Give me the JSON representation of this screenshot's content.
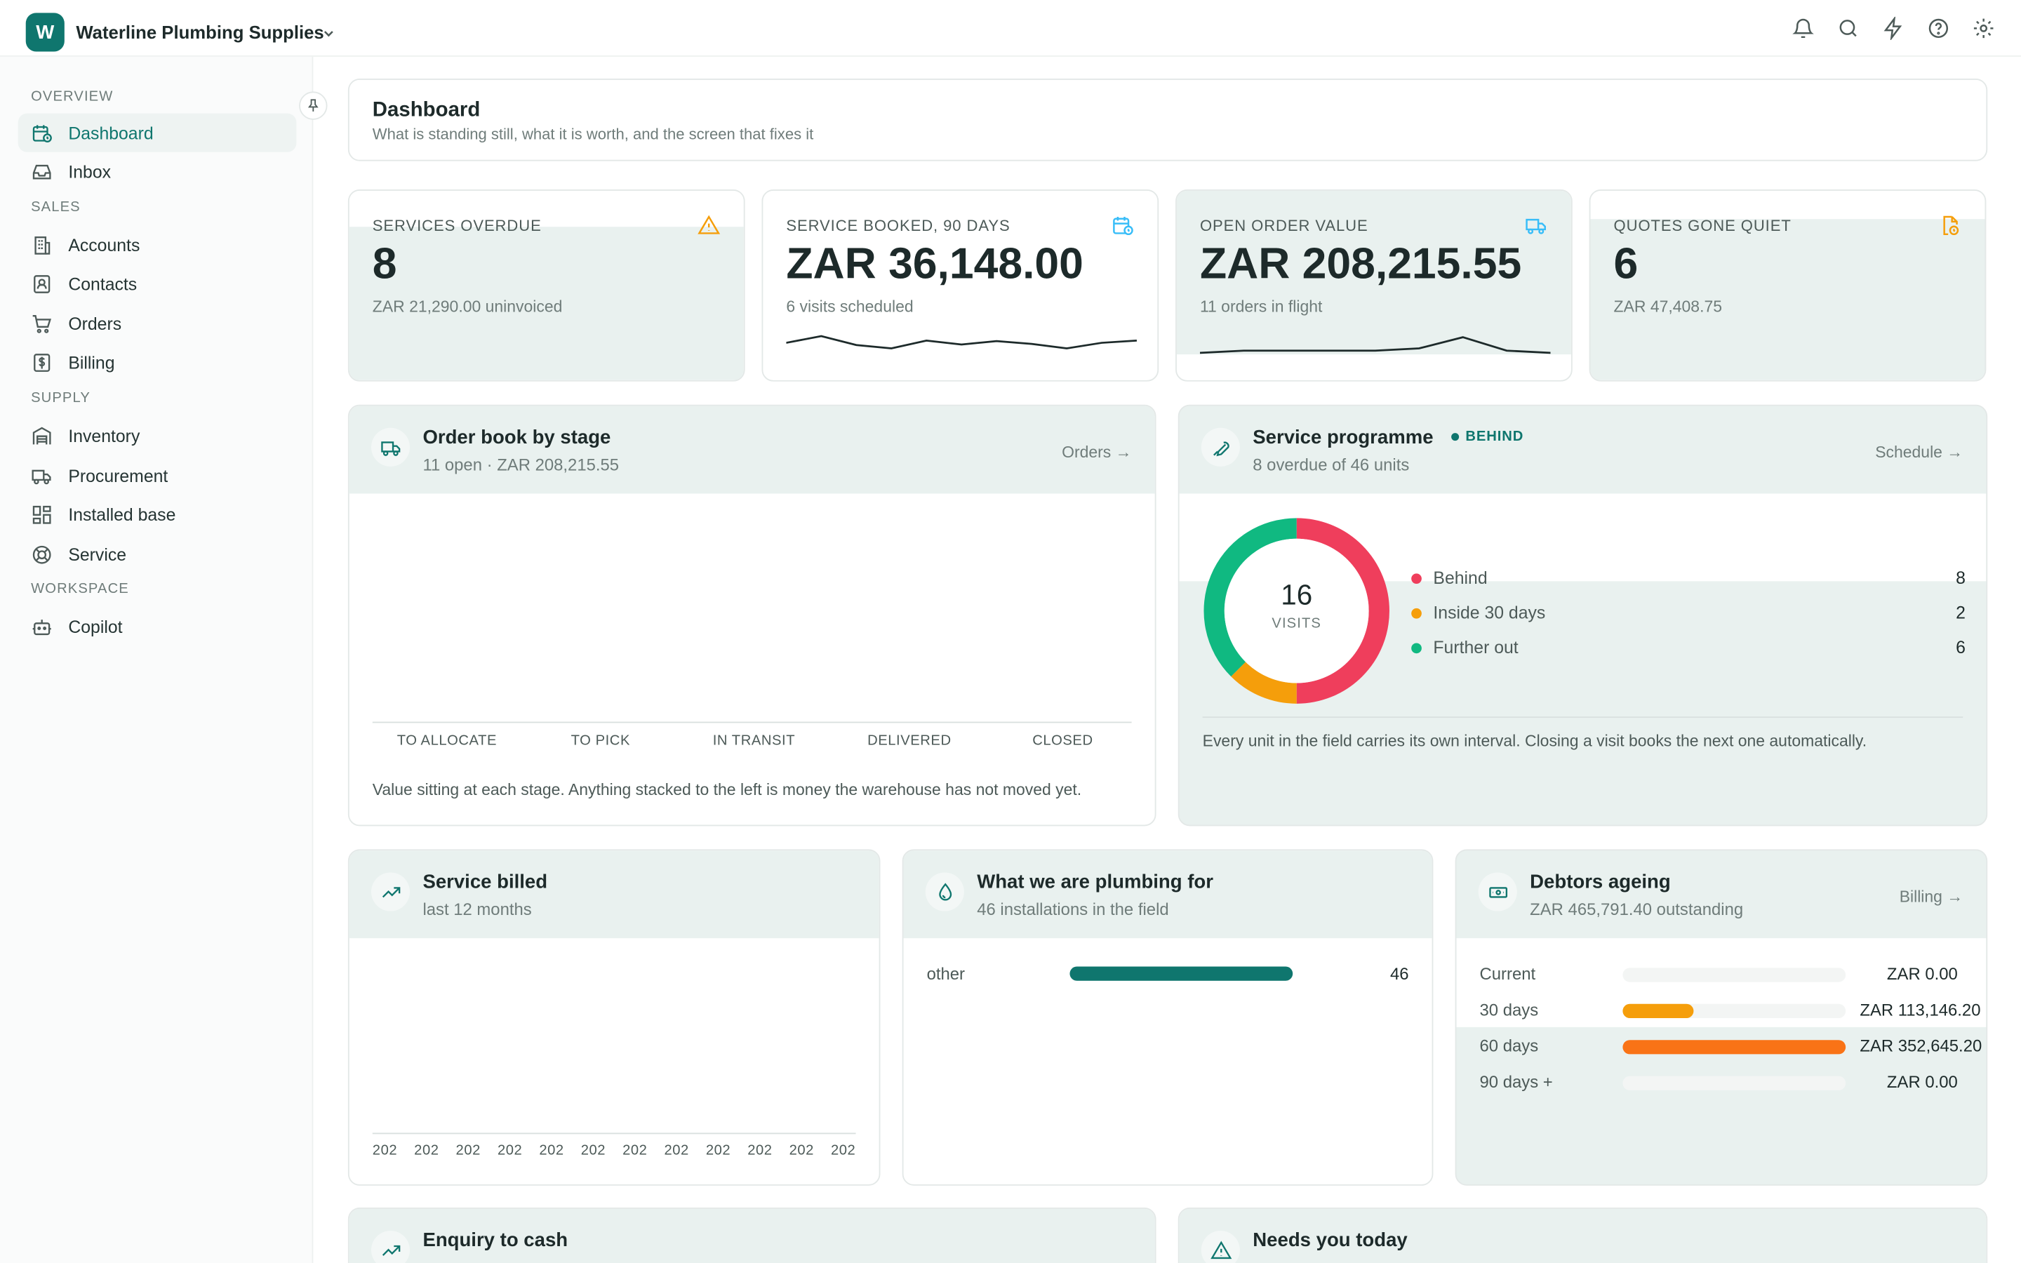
{
  "org": {
    "initial": "W",
    "name": "Waterline Plumbing Supplies"
  },
  "topbar_icons": [
    "bell-icon",
    "search-icon",
    "lightning-icon",
    "help-icon",
    "gear-icon"
  ],
  "sidebar": {
    "sections": [
      "OVERVIEW",
      "SALES",
      "SUPPLY",
      "WORKSPACE"
    ],
    "items": [
      {
        "label": "Dashboard",
        "icon": "calendar-clock-icon",
        "active": true
      },
      {
        "label": "Inbox",
        "icon": "inbox-icon"
      },
      {
        "label": "Accounts",
        "icon": "building-icon"
      },
      {
        "label": "Contacts",
        "icon": "contact-icon"
      },
      {
        "label": "Orders",
        "icon": "cart-icon"
      },
      {
        "label": "Billing",
        "icon": "dollar-icon"
      },
      {
        "label": "Inventory",
        "icon": "warehouse-icon"
      },
      {
        "label": "Procurement",
        "icon": "truck-icon"
      },
      {
        "label": "Installed base",
        "icon": "grid-icon"
      },
      {
        "label": "Service",
        "icon": "lifebuoy-icon"
      },
      {
        "label": "Copilot",
        "icon": "bot-icon"
      }
    ]
  },
  "page": {
    "title": "Dashboard",
    "subtitle": "What is standing still, what it is worth, and the screen that fixes it"
  },
  "kpis": [
    {
      "label": "SERVICES OVERDUE",
      "value": "8",
      "sub": "ZAR 21,290.00 uninvoiced",
      "icon": "warning-icon",
      "color": "#f59e0b"
    },
    {
      "label": "SERVICE BOOKED, 90 DAYS",
      "value": "ZAR 36,148.00",
      "sub": "6 visits scheduled",
      "icon": "calendar-clock-icon",
      "color": "#38bdf8"
    },
    {
      "label": "OPEN ORDER VALUE",
      "value": "ZAR 208,215.55",
      "sub": "11 orders in flight",
      "icon": "truck-icon",
      "color": "#38bdf8"
    },
    {
      "label": "QUOTES GONE QUIET",
      "value": "6",
      "sub": "ZAR 47,408.75",
      "icon": "file-clock-icon",
      "color": "#f59e0b"
    }
  ],
  "order_book": {
    "title": "Order book by stage",
    "sub": "11 open · ZAR 208,215.55",
    "link": "Orders →",
    "stages": [
      "TO ALLOCATE",
      "TO PICK",
      "IN TRANSIT",
      "DELIVERED",
      "CLOSED"
    ],
    "note": "Value sitting at each stage. Anything stacked to the left is money the warehouse has not moved yet."
  },
  "service_prog": {
    "title": "Service programme",
    "badge": "BEHIND",
    "sub": "8 overdue of 46 units",
    "link": "Schedule →",
    "center_value": "16",
    "center_label": "VISITS",
    "legend": [
      {
        "label": "Behind",
        "value": "8",
        "color": "#ef3e5c"
      },
      {
        "label": "Inside 30 days",
        "value": "2",
        "color": "#f59e0b"
      },
      {
        "label": "Further out",
        "value": "6",
        "color": "#10b981"
      }
    ],
    "note": "Every unit in the field carries its own interval. Closing a visit books the next one automatically."
  },
  "service_billed": {
    "title": "Service billed",
    "sub": "last 12 months",
    "ticks": [
      "202",
      "202",
      "202",
      "202",
      "202",
      "202",
      "202",
      "202",
      "202",
      "202",
      "202",
      "202"
    ]
  },
  "plumbing": {
    "title": "What we are plumbing for",
    "sub": "46 installations in the field",
    "rows": [
      {
        "label": "other",
        "value": "46",
        "fill": 1.0
      }
    ]
  },
  "debtors": {
    "title": "Debtors ageing",
    "sub": "ZAR 465,791.40 outstanding",
    "link": "Billing →",
    "rows": [
      {
        "label": "Current",
        "value": "ZAR 0.00",
        "fill": 0
      },
      {
        "label": "30 days",
        "value": "ZAR 113,146.20",
        "fill": 0.32
      },
      {
        "label": "60 days",
        "value": "ZAR 352,645.20",
        "fill": 1.0
      },
      {
        "label": "90 days +",
        "value": "ZAR 0.00",
        "fill": 0
      }
    ]
  },
  "enquiry": {
    "title": "Enquiry to cash"
  },
  "needs": {
    "title": "Needs you today"
  },
  "chart_data": [
    {
      "type": "line",
      "title": "SERVICE BOOKED, 90 DAYS",
      "values": [
        3,
        4.2,
        2.6,
        2,
        3.4,
        2.7,
        3.3,
        2.8,
        2,
        3,
        3.4
      ],
      "ylim": [
        0,
        6
      ]
    },
    {
      "type": "line",
      "title": "OPEN ORDER VALUE",
      "values": [
        1.2,
        1.6,
        1.6,
        1.6,
        1.6,
        2,
        4,
        1.6,
        1.2
      ],
      "ylim": [
        0,
        6
      ]
    },
    {
      "type": "pie",
      "title": "Service programme",
      "categories": [
        "Behind",
        "Inside 30 days",
        "Further out"
      ],
      "values": [
        8,
        2,
        6
      ]
    }
  ]
}
